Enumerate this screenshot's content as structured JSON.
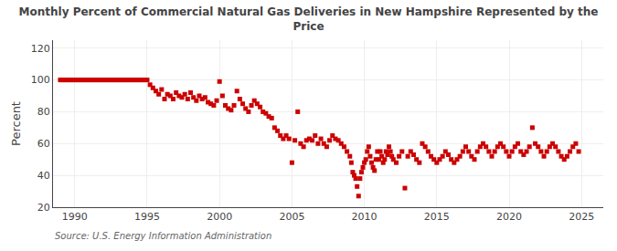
{
  "chart_data": {
    "type": "scatter",
    "title": "Monthly Percent of Commercial Natural Gas Deliveries in New Hampshire Represented by the\nPrice",
    "ylabel": "Percent",
    "annotations": [
      "Source: U.S. Energy Information Administration"
    ],
    "color": "#cc0000",
    "marker": "square",
    "grid": true,
    "xlim": [
      1988.5,
      2026.5
    ],
    "ylim": [
      20,
      125
    ],
    "xticks": [
      1990,
      1995,
      2000,
      2005,
      2010,
      2015,
      2020,
      2025
    ],
    "yticks": [
      20,
      40,
      60,
      80,
      100,
      120
    ],
    "x": [
      1989.0,
      1989.1,
      1989.2,
      1989.3,
      1989.4,
      1989.5,
      1989.6,
      1989.7,
      1989.8,
      1989.9,
      1990.0,
      1990.1,
      1990.2,
      1990.3,
      1990.4,
      1990.5,
      1990.6,
      1990.7,
      1990.8,
      1990.9,
      1991.0,
      1991.1,
      1991.2,
      1991.3,
      1991.4,
      1991.5,
      1991.6,
      1991.7,
      1991.8,
      1991.9,
      1992.0,
      1992.1,
      1992.2,
      1992.3,
      1992.4,
      1992.5,
      1992.6,
      1992.7,
      1992.8,
      1992.9,
      1993.0,
      1993.1,
      1993.2,
      1993.3,
      1993.4,
      1993.5,
      1993.6,
      1993.7,
      1993.8,
      1993.9,
      1994.0,
      1994.1,
      1994.2,
      1994.3,
      1994.4,
      1994.5,
      1994.6,
      1994.7,
      1994.8,
      1994.9,
      1995.0,
      1995.2,
      1995.4,
      1995.6,
      1995.8,
      1996.0,
      1996.2,
      1996.4,
      1996.6,
      1996.8,
      1997.0,
      1997.2,
      1997.4,
      1997.6,
      1997.8,
      1998.0,
      1998.2,
      1998.4,
      1998.6,
      1998.8,
      1999.0,
      1999.2,
      1999.4,
      1999.6,
      1999.8,
      2000.0,
      2000.2,
      2000.4,
      2000.6,
      2000.8,
      2001.0,
      2001.2,
      2001.4,
      2001.6,
      2001.8,
      2002.0,
      2002.2,
      2002.4,
      2002.6,
      2002.8,
      2003.0,
      2003.2,
      2003.4,
      2003.6,
      2003.8,
      2004.0,
      2004.2,
      2004.4,
      2004.6,
      2004.8,
      2005.0,
      2005.2,
      2005.4,
      2005.6,
      2005.8,
      2006.0,
      2006.2,
      2006.4,
      2006.6,
      2006.8,
      2007.0,
      2007.2,
      2007.4,
      2007.6,
      2007.8,
      2008.0,
      2008.2,
      2008.4,
      2008.6,
      2008.8,
      2009.0,
      2009.1,
      2009.2,
      2009.3,
      2009.4,
      2009.5,
      2009.6,
      2009.7,
      2009.8,
      2009.9,
      2010.0,
      2010.1,
      2010.2,
      2010.3,
      2010.4,
      2010.5,
      2010.6,
      2010.7,
      2010.8,
      2010.9,
      2011.0,
      2011.1,
      2011.2,
      2011.3,
      2011.4,
      2011.5,
      2011.6,
      2011.7,
      2011.8,
      2011.9,
      2012.0,
      2012.2,
      2012.4,
      2012.6,
      2012.8,
      2013.0,
      2013.2,
      2013.4,
      2013.6,
      2013.8,
      2014.0,
      2014.2,
      2014.4,
      2014.6,
      2014.8,
      2015.0,
      2015.2,
      2015.4,
      2015.6,
      2015.8,
      2016.0,
      2016.2,
      2016.4,
      2016.6,
      2016.8,
      2017.0,
      2017.2,
      2017.4,
      2017.6,
      2017.8,
      2018.0,
      2018.2,
      2018.4,
      2018.6,
      2018.8,
      2019.0,
      2019.2,
      2019.4,
      2019.6,
      2019.8,
      2020.0,
      2020.2,
      2020.4,
      2020.6,
      2020.8,
      2021.0,
      2021.2,
      2021.4,
      2021.6,
      2021.8,
      2022.0,
      2022.2,
      2022.4,
      2022.6,
      2022.8,
      2023.0,
      2023.2,
      2023.4,
      2023.6,
      2023.8,
      2024.0,
      2024.2,
      2024.4,
      2024.6,
      2024.8
    ],
    "values": [
      100,
      100,
      100,
      100,
      100,
      100,
      100,
      100,
      100,
      100,
      100,
      100,
      100,
      100,
      100,
      100,
      100,
      100,
      100,
      100,
      100,
      100,
      100,
      100,
      100,
      100,
      100,
      100,
      100,
      100,
      100,
      100,
      100,
      100,
      100,
      100,
      100,
      100,
      100,
      100,
      100,
      100,
      100,
      100,
      100,
      100,
      100,
      100,
      100,
      100,
      100,
      100,
      100,
      100,
      100,
      100,
      100,
      100,
      100,
      100,
      100,
      97,
      95,
      93,
      91,
      94,
      88,
      91,
      90,
      88,
      92,
      90,
      89,
      91,
      88,
      92,
      89,
      87,
      90,
      88,
      89,
      86,
      85,
      84,
      87,
      99,
      90,
      84,
      82,
      81,
      84,
      93,
      88,
      85,
      82,
      80,
      84,
      87,
      85,
      83,
      80,
      79,
      77,
      76,
      70,
      68,
      65,
      63,
      65,
      63,
      48,
      62,
      80,
      60,
      58,
      62,
      63,
      62,
      65,
      60,
      63,
      60,
      58,
      62,
      65,
      63,
      62,
      60,
      58,
      55,
      52,
      48,
      42,
      40,
      38,
      33,
      27,
      38,
      42,
      45,
      48,
      50,
      55,
      58,
      52,
      48,
      45,
      43,
      50,
      55,
      50,
      55,
      52,
      48,
      50,
      55,
      53,
      58,
      55,
      52,
      50,
      48,
      52,
      55,
      32,
      52,
      55,
      53,
      50,
      48,
      60,
      58,
      55,
      52,
      50,
      48,
      50,
      52,
      55,
      53,
      50,
      48,
      50,
      52,
      55,
      58,
      55,
      52,
      50,
      55,
      58,
      60,
      58,
      55,
      52,
      55,
      58,
      60,
      58,
      55,
      52,
      55,
      58,
      60,
      55,
      53,
      55,
      58,
      70,
      60,
      58,
      55,
      52,
      55,
      58,
      60,
      58,
      55,
      52,
      50,
      52,
      55,
      58,
      60,
      55
    ]
  }
}
